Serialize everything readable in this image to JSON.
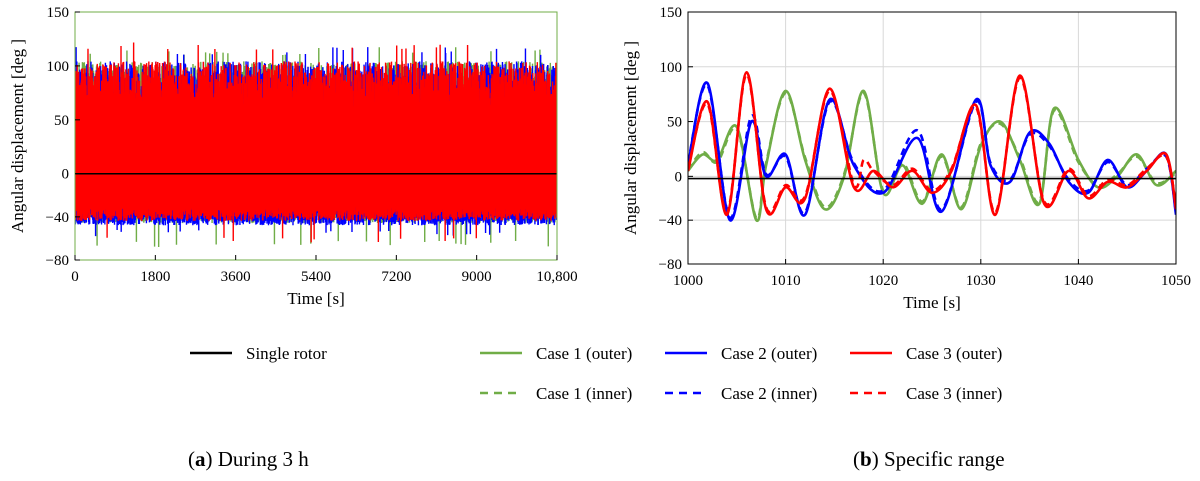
{
  "chart_data": [
    {
      "type": "line",
      "caption_letter": "a",
      "caption_text": "During 3 h",
      "xlabel": "Time [s]",
      "ylabel": "Angular displacement [deg ]",
      "xlim": [
        0,
        10800
      ],
      "ylim": [
        -80,
        150
      ],
      "xticks": [
        "0",
        "1800",
        "3600",
        "5400",
        "7200",
        "9000",
        "10,800"
      ],
      "yticks": [
        "150",
        "100",
        "50",
        "0",
        "−40",
        "−80"
      ],
      "xtick_values": [
        0,
        1800,
        3600,
        5400,
        7200,
        9000,
        10800
      ],
      "ytick_values": [
        150,
        100,
        50,
        0,
        -40,
        -80
      ],
      "grid": false,
      "series": [
        {
          "name": "Single rotor",
          "color": "#000000",
          "style": "solid",
          "x": [
            0,
            10800
          ],
          "y": [
            0,
            0
          ]
        },
        {
          "name": "Case 1 (outer)",
          "color": "#70ad47",
          "style": "solid",
          "band": {
            "upper_typical": 100,
            "upper_max": 118,
            "lower_typical": -40,
            "lower_min": -68
          }
        },
        {
          "name": "Case 2 (outer)",
          "color": "#0000ff",
          "style": "solid",
          "band": {
            "upper_typical": 100,
            "upper_max": 118,
            "lower_typical": -42,
            "lower_min": -58
          }
        },
        {
          "name": "Case 3 (outer)",
          "color": "#ff0000",
          "style": "solid",
          "band": {
            "upper_typical": 100,
            "upper_max": 122,
            "lower_typical": -38,
            "lower_min": -65
          }
        }
      ]
    },
    {
      "type": "line",
      "caption_letter": "b",
      "caption_text": "Specific range",
      "xlabel": "Time [s]",
      "ylabel": "Angular displacement [deg ]",
      "xlim": [
        1000,
        1050
      ],
      "ylim": [
        -80,
        150
      ],
      "xticks": [
        "1000",
        "1010",
        "1020",
        "1030",
        "1040",
        "1050"
      ],
      "yticks": [
        "150",
        "100",
        "50",
        "0",
        "−40",
        "−80"
      ],
      "xtick_values": [
        1000,
        1010,
        1020,
        1030,
        1040,
        1050
      ],
      "ytick_values": [
        150,
        100,
        50,
        0,
        -40,
        -80
      ],
      "grid": true,
      "series": [
        {
          "name": "Single rotor",
          "color": "#000000",
          "style": "solid",
          "x": [
            1000,
            1050
          ],
          "y": [
            -2,
            -2
          ]
        },
        {
          "name": "Case 1 (outer)",
          "color": "#70ad47",
          "style": "solid",
          "x": [
            1000,
            1001.5,
            1003,
            1005,
            1007,
            1008,
            1010,
            1012,
            1014,
            1016,
            1018,
            1020,
            1022,
            1024,
            1026,
            1028,
            1030,
            1032,
            1034,
            1036,
            1037.5,
            1040,
            1042,
            1044,
            1046,
            1048,
            1050
          ],
          "y": [
            5,
            20,
            15,
            45,
            -40,
            10,
            78,
            15,
            -30,
            0,
            78,
            -15,
            10,
            -25,
            20,
            -30,
            28,
            50,
            15,
            -25,
            62,
            15,
            -10,
            0,
            20,
            -8,
            5
          ]
        },
        {
          "name": "Case 1 (inner)",
          "color": "#70ad47",
          "style": "dashed",
          "x": [
            1000,
            1001.5,
            1003,
            1005,
            1007,
            1008,
            1010,
            1012,
            1014,
            1016,
            1018,
            1020,
            1022,
            1024,
            1026,
            1028,
            1030,
            1032,
            1034,
            1036,
            1037.5,
            1040,
            1042,
            1044,
            1046,
            1048,
            1050
          ],
          "y": [
            6,
            22,
            13,
            43,
            -38,
            12,
            76,
            17,
            -28,
            2,
            76,
            -13,
            12,
            -23,
            18,
            -28,
            30,
            48,
            17,
            -23,
            60,
            13,
            -8,
            2,
            18,
            -6,
            3
          ]
        },
        {
          "name": "Case 2 (outer)",
          "color": "#0000ff",
          "style": "solid",
          "x": [
            1000,
            1002,
            1004.3,
            1006.5,
            1008,
            1010,
            1012,
            1014.5,
            1017,
            1020,
            1023.5,
            1026,
            1029.5,
            1031,
            1033,
            1035,
            1037,
            1039,
            1041,
            1043,
            1045,
            1047,
            1049,
            1050
          ],
          "y": [
            10,
            85,
            -40,
            50,
            0,
            20,
            -35,
            70,
            10,
            -15,
            35,
            -32,
            70,
            10,
            -5,
            40,
            30,
            -5,
            -15,
            15,
            -10,
            5,
            20,
            -35
          ]
        },
        {
          "name": "Case 2 (inner)",
          "color": "#0000ff",
          "style": "dashed",
          "x": [
            1000,
            1002,
            1004.3,
            1006.5,
            1008,
            1010,
            1012,
            1014.5,
            1017,
            1020,
            1023.5,
            1026,
            1029.5,
            1031,
            1033,
            1035,
            1037,
            1039,
            1041,
            1043,
            1045,
            1047,
            1049,
            1050
          ],
          "y": [
            12,
            83,
            -38,
            55,
            2,
            18,
            -33,
            68,
            12,
            -13,
            42,
            -30,
            68,
            12,
            -3,
            38,
            28,
            -3,
            -13,
            13,
            -8,
            7,
            18,
            -33
          ]
        },
        {
          "name": "Case 3 (outer)",
          "color": "#ff0000",
          "style": "solid",
          "x": [
            1000,
            1002,
            1004,
            1006,
            1008,
            1010,
            1012,
            1014.5,
            1017,
            1019,
            1021,
            1023,
            1025,
            1027,
            1029.5,
            1031.5,
            1034,
            1036.5,
            1039,
            1041,
            1043,
            1045,
            1047,
            1049,
            1050
          ],
          "y": [
            5,
            68,
            -35,
            95,
            -30,
            -10,
            -20,
            80,
            -10,
            5,
            -10,
            5,
            -15,
            5,
            65,
            -35,
            92,
            -25,
            5,
            -20,
            -5,
            -10,
            5,
            20,
            -30
          ]
        },
        {
          "name": "Case 3 (inner)",
          "color": "#ff0000",
          "style": "dashed",
          "x": [
            1000,
            1002,
            1004,
            1006,
            1008,
            1010,
            1012,
            1014.5,
            1017,
            1018,
            1019,
            1021,
            1023,
            1025,
            1027,
            1029.5,
            1031.5,
            1034,
            1036.5,
            1039,
            1041,
            1043,
            1045,
            1047,
            1049,
            1050
          ],
          "y": [
            7,
            66,
            -33,
            93,
            -28,
            -8,
            -18,
            78,
            -8,
            15,
            5,
            -8,
            7,
            -13,
            7,
            63,
            -33,
            90,
            -23,
            7,
            -18,
            -3,
            -8,
            7,
            18,
            -28
          ]
        }
      ]
    }
  ],
  "legend": {
    "placement": "bottom-center",
    "entries": [
      {
        "label": "Single rotor",
        "color": "#000000",
        "style": "solid"
      },
      {
        "label": "Case 1 (outer)",
        "color": "#70ad47",
        "style": "solid"
      },
      {
        "label": "Case 2 (outer)",
        "color": "#0000ff",
        "style": "solid"
      },
      {
        "label": "Case 3 (outer)",
        "color": "#ff0000",
        "style": "solid"
      },
      {
        "label": "Case 1 (inner)",
        "color": "#70ad47",
        "style": "dashed"
      },
      {
        "label": "Case 2 (inner)",
        "color": "#0000ff",
        "style": "dashed"
      },
      {
        "label": "Case 3 (inner)",
        "color": "#ff0000",
        "style": "dashed"
      }
    ]
  }
}
